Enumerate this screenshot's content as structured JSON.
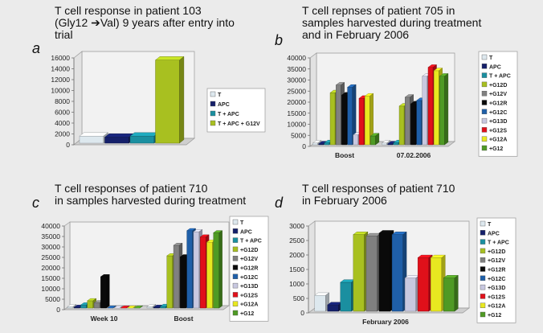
{
  "chart_data": [
    {
      "id": "a",
      "type": "bar",
      "letter": "a",
      "title": "T cell response in patient 103\n(Gly12 ➔Val) 9 years after entry into\ntrial",
      "categories": [
        ""
      ],
      "series": [
        {
          "name": "T",
          "color": "#dde8ee",
          "values": [
            1300
          ]
        },
        {
          "name": "APC",
          "color": "#15206a",
          "values": [
            1100
          ]
        },
        {
          "name": "T + APC",
          "color": "#1a8fa0",
          "values": [
            1300
          ]
        },
        {
          "name": "T + APC + G12V",
          "color": "#a8c020",
          "values": [
            15300
          ]
        }
      ],
      "ylim": [
        0,
        16000
      ],
      "yticks": [
        0,
        2000,
        4000,
        6000,
        8000,
        10000,
        12000,
        14000,
        16000
      ],
      "legend": "right",
      "grid": false
    },
    {
      "id": "b",
      "type": "bar",
      "letter": "b",
      "title": "T cell repnses of patient 705 in\nsamples harvested during treatment\nand in February 2006",
      "categories": [
        "Boost",
        "07.02.2006"
      ],
      "series": [
        {
          "name": "T",
          "color": "#dde8ee",
          "values": [
            800,
            800
          ]
        },
        {
          "name": "APC",
          "color": "#15206a",
          "values": [
            400,
            400
          ]
        },
        {
          "name": "T + APC",
          "color": "#1a8fa0",
          "values": [
            900,
            900
          ]
        },
        {
          "name": "+G12D",
          "color": "#a8c020",
          "values": [
            23500,
            17500
          ]
        },
        {
          "name": "+G12V",
          "color": "#808080",
          "values": [
            27000,
            21500
          ]
        },
        {
          "name": "+G12R",
          "color": "#0a0a0a",
          "values": [
            22500,
            18500
          ]
        },
        {
          "name": "+G12C",
          "color": "#1f5fa8",
          "values": [
            26000,
            20000
          ]
        },
        {
          "name": "+G13D",
          "color": "#c8c8e0",
          "values": [
            4500,
            31000
          ]
        },
        {
          "name": "+G12S",
          "color": "#e0101a",
          "values": [
            21000,
            35000
          ]
        },
        {
          "name": "+G12A",
          "color": "#e8e820",
          "values": [
            22000,
            33500
          ]
        },
        {
          "name": "+G12",
          "color": "#4f9a24",
          "values": [
            4000,
            31000
          ]
        }
      ],
      "ylim": [
        0,
        40000
      ],
      "yticks": [
        0,
        5000,
        10000,
        15000,
        20000,
        25000,
        30000,
        35000,
        40000
      ],
      "legend": "right",
      "grid": false
    },
    {
      "id": "c",
      "type": "bar",
      "letter": "c",
      "title": "T cell responses of patient 710\nin samples harvested during treatment",
      "categories": [
        "Week 10",
        "Boost"
      ],
      "series": [
        {
          "name": "T",
          "color": "#dde8ee",
          "values": [
            700,
            700
          ]
        },
        {
          "name": "APC",
          "color": "#15206a",
          "values": [
            400,
            400
          ]
        },
        {
          "name": "T + APC",
          "color": "#1a8fa0",
          "values": [
            1500,
            800
          ]
        },
        {
          "name": "+G12D",
          "color": "#a8c020",
          "values": [
            3500,
            25000
          ]
        },
        {
          "name": "+G12V",
          "color": "#808080",
          "values": [
            2500,
            30000
          ]
        },
        {
          "name": "+G12R",
          "color": "#0a0a0a",
          "values": [
            15000,
            24500
          ]
        },
        {
          "name": "+G12C",
          "color": "#1f5fa8",
          "values": [
            0,
            37000
          ]
        },
        {
          "name": "+G13D",
          "color": "#c8c8e0",
          "values": [
            0,
            36500
          ]
        },
        {
          "name": "+G12S",
          "color": "#e0101a",
          "values": [
            0,
            34000
          ]
        },
        {
          "name": "+G12A",
          "color": "#e8e820",
          "values": [
            0,
            31500
          ]
        },
        {
          "name": "+G12",
          "color": "#4f9a24",
          "values": [
            0,
            36000
          ]
        }
      ],
      "ylim": [
        0,
        40000
      ],
      "yticks": [
        0,
        5000,
        10000,
        15000,
        20000,
        25000,
        30000,
        35000,
        40000
      ],
      "legend": "right",
      "grid": false
    },
    {
      "id": "d",
      "type": "bar",
      "letter": "d",
      "title": "T cell responses of patient 710\nin February 2006",
      "categories": [
        "February 2006"
      ],
      "series": [
        {
          "name": "T",
          "color": "#dde8ee",
          "values": [
            550
          ]
        },
        {
          "name": "APC",
          "color": "#15206a",
          "values": [
            220
          ]
        },
        {
          "name": "T + APC",
          "color": "#1a8fa0",
          "values": [
            1000
          ]
        },
        {
          "name": "+G12D",
          "color": "#a8c020",
          "values": [
            2650
          ]
        },
        {
          "name": "+G12V",
          "color": "#808080",
          "values": [
            2600
          ]
        },
        {
          "name": "+G12R",
          "color": "#0a0a0a",
          "values": [
            2700
          ]
        },
        {
          "name": "+G12C",
          "color": "#1f5fa8",
          "values": [
            2650
          ]
        },
        {
          "name": "+G13D",
          "color": "#c8c8e0",
          "values": [
            1150
          ]
        },
        {
          "name": "+G12S",
          "color": "#e0101a",
          "values": [
            1850
          ]
        },
        {
          "name": "+G12A",
          "color": "#e8e820",
          "values": [
            1850
          ]
        },
        {
          "name": "+G12",
          "color": "#4f9a24",
          "values": [
            1150
          ]
        }
      ],
      "ylim": [
        0,
        3000
      ],
      "yticks": [
        0,
        500,
        1000,
        1500,
        2000,
        2500,
        3000
      ],
      "legend": "right",
      "grid": false
    }
  ]
}
